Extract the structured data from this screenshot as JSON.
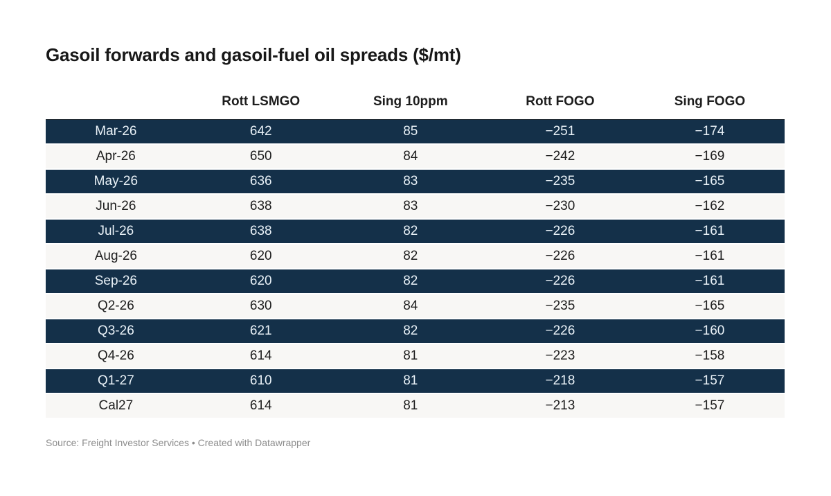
{
  "chart_data": {
    "type": "table",
    "title": "Gasoil forwards and gasoil-fuel oil spreads ($/mt)",
    "columns": [
      "",
      "Rott LSMGO",
      "Sing 10ppm",
      "Rott FOGO",
      "Sing FOGO"
    ],
    "rows": [
      {
        "label": "Mar-26",
        "values": [
          "642",
          "85",
          "−251",
          "−174"
        ]
      },
      {
        "label": "Apr-26",
        "values": [
          "650",
          "84",
          "−242",
          "−169"
        ]
      },
      {
        "label": "May-26",
        "values": [
          "636",
          "83",
          "−235",
          "−165"
        ]
      },
      {
        "label": "Jun-26",
        "values": [
          "638",
          "83",
          "−230",
          "−162"
        ]
      },
      {
        "label": "Jul-26",
        "values": [
          "638",
          "82",
          "−226",
          "−161"
        ]
      },
      {
        "label": "Aug-26",
        "values": [
          "620",
          "82",
          "−226",
          "−161"
        ]
      },
      {
        "label": "Sep-26",
        "values": [
          "620",
          "82",
          "−226",
          "−161"
        ]
      },
      {
        "label": "Q2-26",
        "values": [
          "630",
          "84",
          "−235",
          "−165"
        ]
      },
      {
        "label": "Q3-26",
        "values": [
          "621",
          "82",
          "−226",
          "−160"
        ]
      },
      {
        "label": "Q4-26",
        "values": [
          "614",
          "81",
          "−223",
          "−158"
        ]
      },
      {
        "label": "Q1-27",
        "values": [
          "610",
          "81",
          "−218",
          "−157"
        ]
      },
      {
        "label": "Cal27",
        "values": [
          "614",
          "81",
          "−213",
          "−157"
        ]
      }
    ],
    "row_stripe_pattern": [
      "dark",
      "light"
    ],
    "source": "Freight Investor Services",
    "footer": "Source: Freight Investor Services • Created with Datawrapper",
    "layout_hints": {
      "grid": "off",
      "first_row_top_border": "on"
    }
  },
  "colors": {
    "dark_row_bg": "#143049",
    "dark_row_text": "#e9f1f7",
    "light_row_bg": "#f8f7f5",
    "body_text": "#1d1d1d",
    "title_text": "#181818",
    "footer_text": "#8c8c8c",
    "table_top_border": "#222b33",
    "page_bg": "#ffffff"
  }
}
